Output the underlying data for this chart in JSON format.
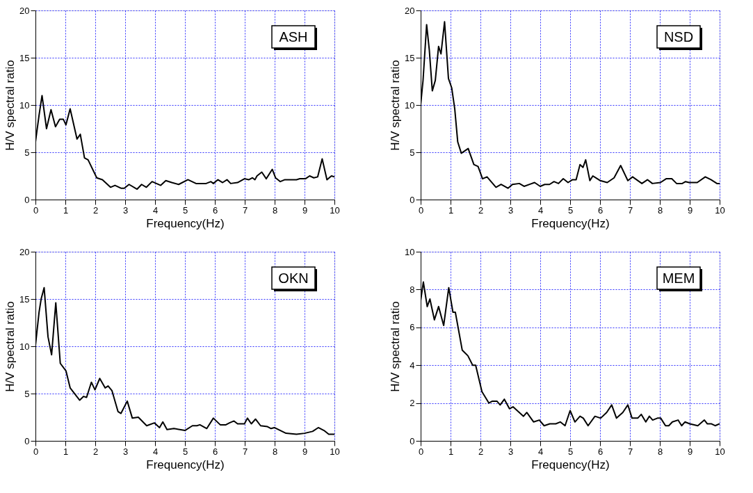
{
  "chart_data": [
    {
      "type": "line",
      "xlabel": "Frequency(Hz)",
      "ylabel": "H/V spectral ratio",
      "annotations": [
        "ASH"
      ],
      "xlim": [
        0,
        10
      ],
      "ylim": [
        0,
        20
      ],
      "xticks": [
        0,
        1,
        2,
        3,
        4,
        5,
        6,
        7,
        8,
        9,
        10
      ],
      "yticks": [
        0,
        5,
        10,
        15,
        20
      ],
      "grid": true,
      "x": [
        0,
        0.12,
        0.22,
        0.37,
        0.52,
        0.67,
        0.81,
        0.93,
        1.02,
        1.16,
        1.39,
        1.5,
        1.64,
        1.76,
        2.05,
        2.24,
        2.51,
        2.66,
        2.86,
        2.97,
        3.13,
        3.4,
        3.55,
        3.71,
        3.9,
        4.19,
        4.36,
        4.56,
        4.79,
        5.1,
        5.37,
        5.71,
        5.87,
        5.95,
        6.1,
        6.26,
        6.41,
        6.53,
        6.76,
        6.99,
        7.14,
        7.26,
        7.34,
        7.41,
        7.57,
        7.72,
        7.92,
        8.03,
        8.19,
        8.34,
        8.73,
        8.84,
        9.03,
        9.17,
        9.31,
        9.44,
        9.59,
        9.75,
        9.9,
        10
      ],
      "series": [
        {
          "color": "#000000",
          "values": [
            6.1,
            8.9,
            11.0,
            7.5,
            9.5,
            7.7,
            8.5,
            8.5,
            7.9,
            9.6,
            6.4,
            6.9,
            4.4,
            4.2,
            2.3,
            2.1,
            1.3,
            1.5,
            1.2,
            1.2,
            1.6,
            1.1,
            1.6,
            1.3,
            1.9,
            1.5,
            2.0,
            1.8,
            1.6,
            2.1,
            1.7,
            1.7,
            1.9,
            1.7,
            2.1,
            1.8,
            2.1,
            1.7,
            1.8,
            2.2,
            2.1,
            2.3,
            2.1,
            2.5,
            2.9,
            2.2,
            3.2,
            2.3,
            1.9,
            2.1,
            2.1,
            2.2,
            2.2,
            2.5,
            2.3,
            2.4,
            4.3,
            2.1,
            2.5,
            2.4
          ]
        }
      ]
    },
    {
      "type": "line",
      "xlabel": "Frequency(Hz)",
      "ylabel": "H/V spectral ratio",
      "annotations": [
        "NSD"
      ],
      "xlim": [
        0,
        10
      ],
      "ylim": [
        0,
        20
      ],
      "xticks": [
        0,
        1,
        2,
        3,
        4,
        5,
        6,
        7,
        8,
        9,
        10
      ],
      "yticks": [
        0,
        5,
        10,
        15,
        20
      ],
      "grid": true,
      "x": [
        0,
        0.08,
        0.2,
        0.29,
        0.39,
        0.49,
        0.6,
        0.68,
        0.8,
        0.93,
        1.04,
        1.14,
        1.24,
        1.36,
        1.59,
        1.78,
        1.92,
        2.07,
        2.22,
        2.52,
        2.69,
        2.92,
        3.07,
        3.3,
        3.46,
        3.81,
        4.0,
        4.15,
        4.31,
        4.46,
        4.61,
        4.77,
        4.93,
        5.08,
        5.2,
        5.33,
        5.43,
        5.52,
        5.66,
        5.76,
        6.01,
        6.24,
        6.47,
        6.69,
        6.93,
        7.09,
        7.4,
        7.59,
        7.75,
        8.02,
        8.21,
        8.4,
        8.56,
        8.75,
        8.86,
        8.98,
        9.25,
        9.52,
        9.71,
        9.91,
        10
      ],
      "series": [
        {
          "color": "#000000",
          "values": [
            10.0,
            12.6,
            18.5,
            15.8,
            11.5,
            12.6,
            16.2,
            15.4,
            18.8,
            12.8,
            11.8,
            9.6,
            6.1,
            4.9,
            5.4,
            3.7,
            3.5,
            2.2,
            2.4,
            1.3,
            1.6,
            1.2,
            1.6,
            1.7,
            1.4,
            1.8,
            1.4,
            1.6,
            1.6,
            1.9,
            1.7,
            2.2,
            1.8,
            2.1,
            2.1,
            3.7,
            3.4,
            4.2,
            2.0,
            2.5,
            2.0,
            1.8,
            2.3,
            3.6,
            2.0,
            2.4,
            1.7,
            2.1,
            1.7,
            1.8,
            2.2,
            2.2,
            1.7,
            1.7,
            1.9,
            1.8,
            1.8,
            2.4,
            2.1,
            1.7,
            1.7
          ]
        }
      ]
    },
    {
      "type": "line",
      "xlabel": "Frequency(Hz)",
      "ylabel": "H/V spectral ratio",
      "annotations": [
        "OKN"
      ],
      "xlim": [
        0,
        10
      ],
      "ylim": [
        0,
        20
      ],
      "xticks": [
        0,
        1,
        2,
        3,
        4,
        5,
        6,
        7,
        8,
        9,
        10
      ],
      "yticks": [
        0,
        5,
        10,
        15,
        20
      ],
      "grid": true,
      "x": [
        0,
        0.12,
        0.19,
        0.29,
        0.42,
        0.54,
        0.68,
        0.83,
        1.02,
        1.16,
        1.48,
        1.61,
        1.71,
        1.87,
        1.99,
        2.15,
        2.33,
        2.43,
        2.56,
        2.76,
        2.86,
        3.07,
        3.24,
        3.44,
        3.72,
        3.98,
        4.15,
        4.26,
        4.4,
        4.63,
        5.0,
        5.25,
        5.4,
        5.5,
        5.73,
        5.95,
        6.18,
        6.37,
        6.49,
        6.64,
        6.76,
        6.99,
        7.09,
        7.22,
        7.36,
        7.53,
        7.76,
        7.88,
        7.99,
        8.38,
        8.73,
        9.0,
        9.27,
        9.46,
        9.65,
        9.81,
        10
      ],
      "series": [
        {
          "color": "#000000",
          "values": [
            10.1,
            13.6,
            15.0,
            16.2,
            11.0,
            9.1,
            14.6,
            8.2,
            7.4,
            5.6,
            4.3,
            4.7,
            4.6,
            6.2,
            5.4,
            6.6,
            5.6,
            5.8,
            5.3,
            3.1,
            2.9,
            4.2,
            2.4,
            2.5,
            1.6,
            1.9,
            1.4,
            2.0,
            1.2,
            1.3,
            1.1,
            1.6,
            1.6,
            1.7,
            1.3,
            2.4,
            1.7,
            1.7,
            1.9,
            2.1,
            1.8,
            1.8,
            2.4,
            1.8,
            2.3,
            1.6,
            1.5,
            1.3,
            1.4,
            0.8,
            0.7,
            0.8,
            1.0,
            1.4,
            1.1,
            0.7,
            0.7
          ]
        }
      ]
    },
    {
      "type": "line",
      "xlabel": "Frequency(Hz)",
      "ylabel": "H/V spectral ratio",
      "annotations": [
        "MEM"
      ],
      "xlim": [
        0,
        10
      ],
      "ylim": [
        0,
        10
      ],
      "xticks": [
        0,
        1,
        2,
        3,
        4,
        5,
        6,
        7,
        8,
        9,
        10
      ],
      "yticks": [
        0,
        2,
        4,
        6,
        8,
        10
      ],
      "grid": true,
      "x": [
        0,
        0.09,
        0.22,
        0.31,
        0.46,
        0.6,
        0.77,
        0.94,
        1.08,
        1.16,
        1.39,
        1.58,
        1.74,
        1.84,
        2.05,
        2.28,
        2.4,
        2.55,
        2.66,
        2.8,
        2.97,
        3.09,
        3.44,
        3.55,
        3.78,
        3.97,
        4.13,
        4.32,
        4.52,
        4.67,
        4.83,
        5.0,
        5.16,
        5.33,
        5.44,
        5.6,
        5.83,
        6.02,
        6.22,
        6.39,
        6.55,
        6.76,
        6.93,
        7.07,
        7.26,
        7.38,
        7.53,
        7.65,
        7.76,
        7.92,
        8.03,
        8.19,
        8.3,
        8.42,
        8.61,
        8.73,
        8.84,
        9.0,
        9.27,
        9.49,
        9.59,
        9.73,
        9.85,
        10
      ],
      "series": [
        {
          "color": "#000000",
          "values": [
            7.4,
            8.4,
            7.1,
            7.5,
            6.4,
            7.1,
            6.1,
            8.1,
            6.8,
            6.8,
            4.8,
            4.5,
            4.0,
            4.0,
            2.6,
            2.0,
            2.1,
            2.1,
            1.9,
            2.2,
            1.7,
            1.8,
            1.3,
            1.5,
            1.0,
            1.1,
            0.8,
            0.9,
            0.9,
            1.0,
            0.8,
            1.6,
            1.0,
            1.3,
            1.2,
            0.8,
            1.3,
            1.2,
            1.5,
            1.9,
            1.2,
            1.5,
            1.9,
            1.2,
            1.2,
            1.4,
            1.0,
            1.3,
            1.1,
            1.2,
            1.2,
            0.8,
            0.8,
            1.0,
            1.1,
            0.8,
            1.0,
            0.9,
            0.8,
            1.1,
            0.9,
            0.9,
            0.8,
            0.9
          ]
        }
      ]
    }
  ]
}
